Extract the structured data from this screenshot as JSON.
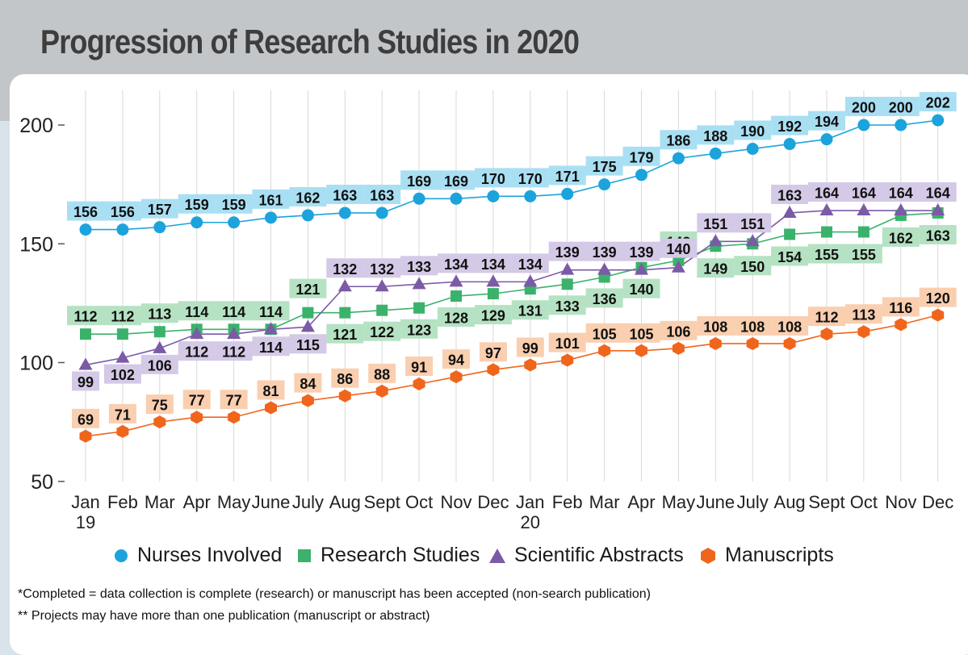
{
  "title": "Progression of Research Studies in 2020",
  "footnotes": [
    "*Completed = data collection is complete (research) or manuscript has been accepted (non-search publication)",
    "** Projects may have more than one publication (manuscript or abstract)"
  ],
  "colors": {
    "nurses": "#1ca3dc",
    "nurses_label_bg": "#a9dff3",
    "research": "#3bb26b",
    "research_label_bg": "#b5e2c3",
    "abstracts": "#7b5aa6",
    "abstracts_label_bg": "#d4c9e6",
    "manuscripts": "#f0651c",
    "manuscripts_label_bg": "#f9cfb0"
  },
  "chart_data": {
    "type": "line",
    "title": "Progression of Research Studies in 2020",
    "xlabel": "",
    "ylabel": "",
    "ylim": [
      50,
      210
    ],
    "yticks": [
      50,
      100,
      150,
      200
    ],
    "grid": "vertical",
    "legend": "bottom",
    "categories": [
      [
        "Jan",
        "19"
      ],
      [
        "Feb"
      ],
      [
        "Mar"
      ],
      [
        "Apr"
      ],
      [
        "May"
      ],
      [
        "June"
      ],
      [
        "July"
      ],
      [
        "Aug"
      ],
      [
        "Sept"
      ],
      [
        "Oct"
      ],
      [
        "Nov"
      ],
      [
        "Dec"
      ],
      [
        "Jan",
        "20"
      ],
      [
        "Feb"
      ],
      [
        "Mar"
      ],
      [
        "Apr"
      ],
      [
        "May"
      ],
      [
        "June"
      ],
      [
        "July"
      ],
      [
        "Aug"
      ],
      [
        "Sept"
      ],
      [
        "Oct"
      ],
      [
        "Nov"
      ],
      [
        "Dec"
      ]
    ],
    "series": [
      {
        "name": "Nurses Involved",
        "marker": "circle",
        "values": [
          156,
          156,
          157,
          159,
          159,
          161,
          162,
          163,
          163,
          169,
          169,
          170,
          170,
          171,
          175,
          179,
          186,
          188,
          190,
          192,
          194,
          200,
          200,
          202
        ]
      },
      {
        "name": "Research Studies",
        "marker": "square",
        "values": [
          112,
          112,
          113,
          114,
          114,
          114,
          121,
          121,
          122,
          123,
          128,
          129,
          131,
          133,
          136,
          140,
          143,
          149,
          150,
          154,
          155,
          155,
          162,
          163
        ]
      },
      {
        "name": "Scientific Abstracts",
        "marker": "triangle",
        "values": [
          99,
          102,
          106,
          112,
          112,
          114,
          115,
          132,
          132,
          133,
          134,
          134,
          134,
          139,
          139,
          139,
          140,
          151,
          151,
          163,
          164,
          164,
          164,
          164
        ]
      },
      {
        "name": "Manuscripts",
        "marker": "hexagon",
        "values": [
          69,
          71,
          75,
          77,
          77,
          81,
          84,
          86,
          88,
          91,
          94,
          97,
          99,
          101,
          105,
          105,
          106,
          108,
          108,
          108,
          112,
          113,
          116,
          120
        ]
      }
    ]
  }
}
